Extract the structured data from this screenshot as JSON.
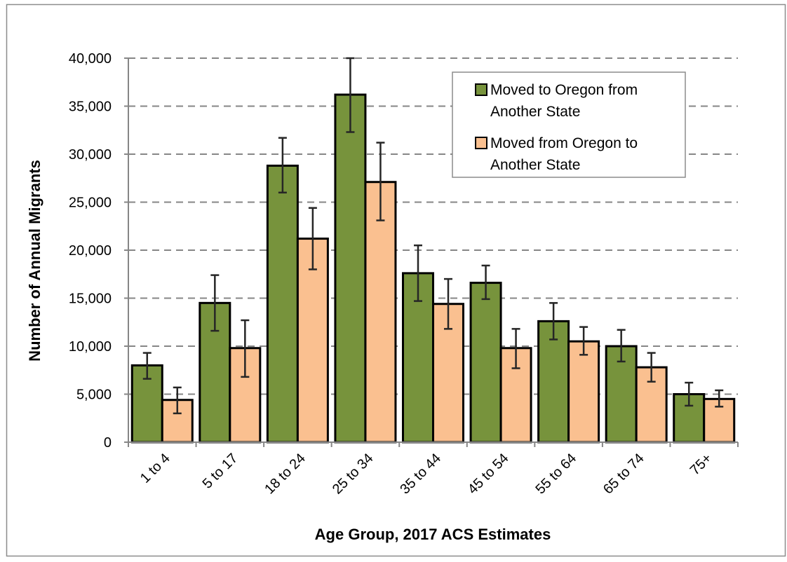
{
  "chart_data": {
    "type": "bar",
    "title": "",
    "xlabel": "Age Group, 2017 ACS Estimates",
    "ylabel": "Number of Annual Migrants",
    "ylim": [
      0,
      40000
    ],
    "yticks": [
      0,
      5000,
      10000,
      15000,
      20000,
      25000,
      30000,
      35000,
      40000
    ],
    "ytick_labels": [
      "0",
      "5,000",
      "10,000",
      "15,000",
      "20,000",
      "25,000",
      "30,000",
      "35,000",
      "40,000"
    ],
    "grid": "horizontal dashed",
    "legend_position": "top-right",
    "categories": [
      "1 to 4",
      "5 to 17",
      "18 to 24",
      "25 to 34",
      "35 to 44",
      "45 to 54",
      "55 to 64",
      "65 to 74",
      "75+"
    ],
    "series": [
      {
        "name": "Moved to Oregon from Another State",
        "legend_lines": [
          "Moved to Oregon from",
          "Another State"
        ],
        "color": "#77933c",
        "values": [
          8000,
          14500,
          28800,
          36200,
          17600,
          16600,
          12600,
          10000,
          5000
        ],
        "error_low": [
          6600,
          11600,
          26000,
          32300,
          14700,
          14900,
          10700,
          8400,
          3800
        ],
        "error_high": [
          9300,
          17400,
          31700,
          40000,
          20500,
          18400,
          14500,
          11700,
          6200
        ]
      },
      {
        "name": "Moved from Oregon to Another State",
        "legend_lines": [
          "Moved from Oregon to",
          "Another State"
        ],
        "color": "#fac090",
        "values": [
          4400,
          9800,
          21200,
          27100,
          14400,
          9800,
          10500,
          7800,
          4500
        ],
        "error_low": [
          3000,
          6800,
          18000,
          23100,
          11800,
          7700,
          9100,
          6300,
          3700
        ],
        "error_high": [
          5700,
          12700,
          24400,
          31200,
          17000,
          11800,
          12000,
          9300,
          5400
        ]
      }
    ]
  }
}
